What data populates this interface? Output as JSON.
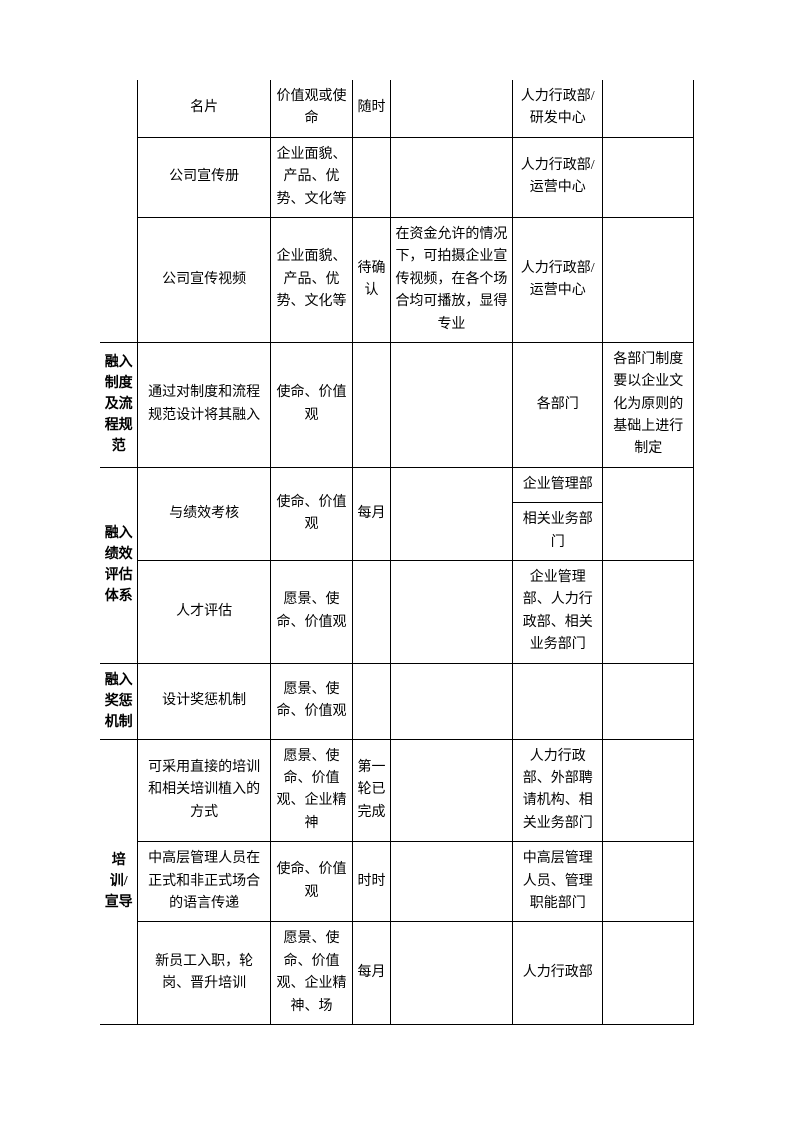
{
  "rows": [
    {
      "c0": "",
      "c1": "名片",
      "c2": "价值观或使命",
      "c3": "随时",
      "c4": "",
      "c5": "人力行政部/研发中心",
      "c6": ""
    },
    {
      "c1": "公司宣传册",
      "c2": "企业面貌、产品、优势、文化等",
      "c3": "",
      "c4": "",
      "c5": "人力行政部/运营中心",
      "c6": ""
    },
    {
      "c1": "公司宣传视频",
      "c2": "企业面貌、产品、优势、文化等",
      "c3": "待确认",
      "c4": "在资金允许的情况下，可拍摄企业宣传视频，在各个场合均可播放，显得专业",
      "c5": "人力行政部/运营中心",
      "c6": ""
    },
    {
      "c0": "融入制度及流程规范",
      "c1": "通过对制度和流程规范设计将其融入",
      "c2": "使命、价值观",
      "c3": "",
      "c4": "",
      "c5": "各部门",
      "c6": "各部门制度要以企业文化为原则的基础上进行制定"
    },
    {
      "c0": "融入绩效评估体系",
      "c1": "与绩效考核",
      "c2": "使命、价值观",
      "c3": "每月",
      "c4": "",
      "c5a": "企业管理部",
      "c5b": "相关业务部门",
      "c6": ""
    },
    {
      "c1": "人才评估",
      "c2": "愿景、使命、价值观",
      "c3": "",
      "c4": "",
      "c5": "企业管理部、人力行政部、相关业务部门",
      "c6": ""
    },
    {
      "c0": "融入奖惩机制",
      "c1": "设计奖惩机制",
      "c2": "愿景、使命、价值观",
      "c3": "",
      "c4": "",
      "c5": "",
      "c6": ""
    },
    {
      "c0": "培训/宣导",
      "c1": "可采用直接的培训和相关培训植入的方式",
      "c2": "愿景、使命、价值观、企业精神",
      "c3": "第一轮已完成",
      "c4": "",
      "c5": "人力行政部、外部聘请机构、相关业务部门",
      "c6": ""
    },
    {
      "c1": "中高层管理人员在正式和非正式场合的语言传递",
      "c2": "使命、价值观",
      "c3": "时时",
      "c4": "",
      "c5": "中高层管理人员、管理职能部门",
      "c6": ""
    },
    {
      "c1": "新员工入职，轮岗、晋升培训",
      "c2": "愿景、使命、价值观、企业精神、场",
      "c3": "每月",
      "c4": "",
      "c5": "人力行政部",
      "c6": ""
    }
  ]
}
